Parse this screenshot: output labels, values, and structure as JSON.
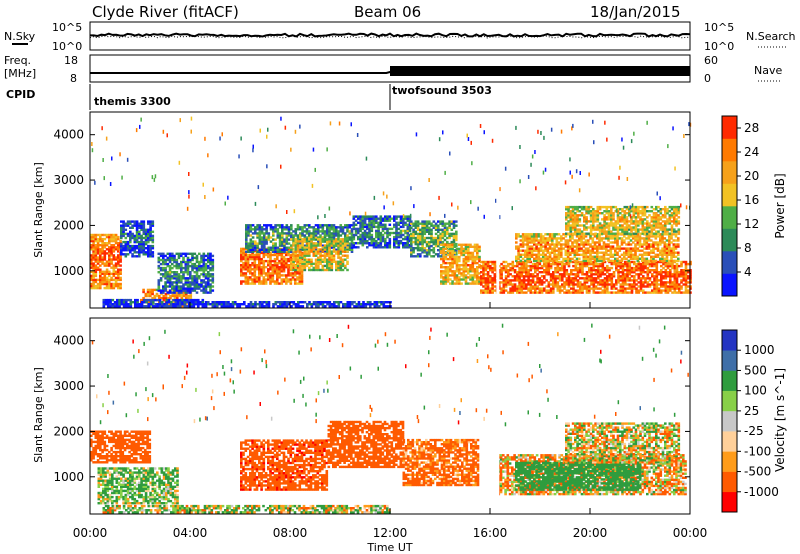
{
  "header": {
    "station": "Clyde River (fitACF)",
    "beam": "Beam 06",
    "date": "18/Jan/2015"
  },
  "top_panels": {
    "nsky_label": "N.Sky",
    "nsky_top": "10^5",
    "nsky_bottom": "10^0",
    "nsearch_label": "N.Search",
    "nsearch_top": "10^5",
    "nsearch_bottom": "10^0",
    "freq_label": "Freq.",
    "freq_unit": "[MHz]",
    "freq_top": "18",
    "freq_bottom": "8",
    "nave_label": "Nave",
    "nave_top": "60",
    "nave_bottom": "0",
    "cpid_label": "CPID",
    "cpid_modes": [
      {
        "name": "themis 3300",
        "start_hour": 0
      },
      {
        "name": "twofsound 3503",
        "start_hour": 12
      }
    ]
  },
  "colors": {
    "power": [
      "#0a14ff",
      "#2a4fb8",
      "#2c8a58",
      "#4fae46",
      "#f2c224",
      "#f6a11a",
      "#ff7a00",
      "#ff2a00"
    ],
    "velocity": [
      "#ff0000",
      "#ff5a00",
      "#ff9c1a",
      "#ffd09a",
      "#c8c8c8",
      "#88d048",
      "#2f9c3e",
      "#3f6fa8",
      "#2434c2"
    ]
  },
  "chart_data": [
    {
      "type": "heatmap",
      "title": "Power",
      "xlabel": "Time UT",
      "ylabel": "Slant Range [km]",
      "x_ticks": [
        "00:00",
        "04:00",
        "08:00",
        "12:00",
        "16:00",
        "20:00",
        "00:00"
      ],
      "x_range_hours": [
        0,
        24
      ],
      "y_ticks": [
        1000,
        2000,
        3000,
        4000
      ],
      "y_range_km": [
        180,
        4500
      ],
      "colorbar_label": "Power [dB]",
      "colorbar_ticks": [
        4,
        8,
        12,
        16,
        20,
        24,
        28
      ],
      "colorbar_range": [
        0,
        30
      ],
      "blobs": [
        {
          "t0": 0.0,
          "t1": 1.2,
          "r0": 600,
          "r1": 1800,
          "v": 26
        },
        {
          "t0": 1.2,
          "t1": 2.5,
          "r0": 1300,
          "r1": 2100,
          "v": 8
        },
        {
          "t0": 2.0,
          "t1": 4.0,
          "r0": 200,
          "r1": 600,
          "v": 24
        },
        {
          "t0": 2.7,
          "t1": 4.9,
          "r0": 500,
          "r1": 1400,
          "v": 10
        },
        {
          "t0": 0.5,
          "t1": 4.5,
          "r0": 200,
          "r1": 380,
          "v": 5
        },
        {
          "t0": 6.0,
          "t1": 8.5,
          "r0": 700,
          "r1": 1500,
          "v": 27
        },
        {
          "t0": 6.2,
          "t1": 10.5,
          "r0": 1400,
          "r1": 2000,
          "v": 12
        },
        {
          "t0": 8.0,
          "t1": 10.3,
          "r0": 1000,
          "r1": 1700,
          "v": 20
        },
        {
          "t0": 10.5,
          "t1": 12.8,
          "r0": 1500,
          "r1": 2200,
          "v": 10
        },
        {
          "t0": 12.8,
          "t1": 14.6,
          "r0": 1300,
          "r1": 2100,
          "v": 14
        },
        {
          "t0": 14.0,
          "t1": 15.6,
          "r0": 700,
          "r1": 1600,
          "v": 22
        },
        {
          "t0": 15.6,
          "t1": 24.0,
          "r0": 500,
          "r1": 1200,
          "v": 28
        },
        {
          "t0": 17.0,
          "t1": 23.5,
          "r0": 1200,
          "r1": 1800,
          "v": 23
        },
        {
          "t0": 19.0,
          "t1": 23.5,
          "r0": 1800,
          "r1": 2400,
          "v": 20
        },
        {
          "t0": 4.5,
          "t1": 12.0,
          "r0": 200,
          "r1": 320,
          "v": 6
        }
      ]
    },
    {
      "type": "heatmap",
      "title": "Velocity",
      "xlabel": "Time UT",
      "ylabel": "Slant Range [km]",
      "x_ticks": [
        "00:00",
        "04:00",
        "08:00",
        "12:00",
        "16:00",
        "20:00",
        "00:00"
      ],
      "x_range_hours": [
        0,
        24
      ],
      "y_ticks": [
        1000,
        2000,
        3000,
        4000
      ],
      "y_range_km": [
        180,
        4500
      ],
      "colorbar_label": "Velocity [m s^-1]",
      "colorbar_ticks": [
        "1000",
        "500",
        "100",
        "25",
        "-25",
        "-100",
        "-500",
        "-1000"
      ],
      "colorbar_range": [
        -1000,
        1000
      ],
      "blobs": [
        {
          "t0": 0.0,
          "t1": 2.4,
          "r0": 1300,
          "r1": 2000,
          "v": -300
        },
        {
          "t0": 0.3,
          "t1": 3.5,
          "r0": 400,
          "r1": 1200,
          "v": 120
        },
        {
          "t0": 6.0,
          "t1": 9.5,
          "r0": 700,
          "r1": 1800,
          "v": -350
        },
        {
          "t0": 9.5,
          "t1": 12.5,
          "r0": 1200,
          "r1": 2200,
          "v": -300
        },
        {
          "t0": 12.5,
          "t1": 15.5,
          "r0": 800,
          "r1": 1800,
          "v": -200
        },
        {
          "t0": 16.3,
          "t1": 23.8,
          "r0": 600,
          "r1": 1500,
          "v": -60
        },
        {
          "t0": 17.0,
          "t1": 22.0,
          "r0": 700,
          "r1": 1300,
          "v": 300
        },
        {
          "t0": 19.0,
          "t1": 23.5,
          "r0": 1300,
          "r1": 2200,
          "v": 0
        },
        {
          "t0": 0.5,
          "t1": 12.0,
          "r0": 200,
          "r1": 380,
          "v": 50
        }
      ]
    }
  ]
}
